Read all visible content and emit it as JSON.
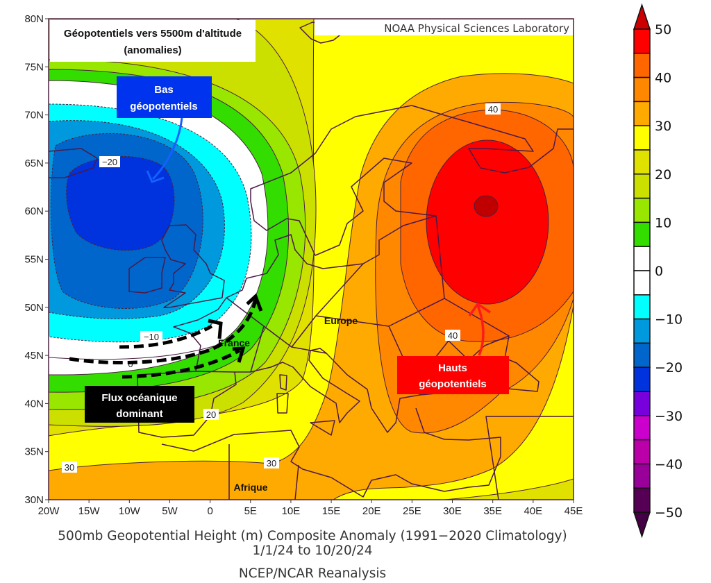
{
  "map": {
    "title_box": {
      "line1": "Géopotentiels vers 5500m d'altitude",
      "line2": "(anomalies)"
    },
    "credit": "NOAA Physical Sciences Laboratory",
    "low_box": {
      "line1": "Bas",
      "line2": "géopotentiels",
      "color": "#0033ee"
    },
    "high_box": {
      "line1": "Hauts",
      "line2": "géopotentiels",
      "color": "#ff0000"
    },
    "flow_box": {
      "line1": "Flux océanique",
      "line2": "dominant",
      "color": "#000000"
    },
    "places": {
      "europe": "Europe",
      "france": "France",
      "afrique": "Afrique"
    },
    "contour_labels": [
      "−20",
      "−10",
      "0",
      "20",
      "30",
      "30",
      "40",
      "40"
    ],
    "lat_labels": [
      "80N",
      "75N",
      "70N",
      "65N",
      "60N",
      "55N",
      "50N",
      "45N",
      "40N",
      "35N",
      "30N"
    ],
    "lon_labels": [
      "20W",
      "15W",
      "10W",
      "5W",
      "0",
      "5E",
      "10E",
      "15E",
      "20E",
      "25E",
      "30E",
      "35E",
      "40E",
      "45E"
    ],
    "lon_range": [
      -20,
      45
    ],
    "lat_range": [
      30,
      80
    ]
  },
  "colorbar": {
    "labels": [
      "50",
      "40",
      "30",
      "20",
      "10",
      "0",
      "−10",
      "−20",
      "−30",
      "−40",
      "−50"
    ],
    "colors": [
      "#ff0000",
      "#ff6600",
      "#ff8800",
      "#ffaa00",
      "#ffff00",
      "#e1e100",
      "#cce000",
      "#99e600",
      "#33dd00",
      "#ffffff",
      "#ffffff",
      "#00ffff",
      "#0099dd",
      "#0066cc",
      "#0033dd",
      "#7700dd",
      "#cc00cc",
      "#bb00aa",
      "#990099",
      "#550055"
    ],
    "over_color": "#cc0000",
    "under_color": "#440044"
  },
  "caption": {
    "line1": "500mb Geopotential Height (m) Composite Anomaly (1991−2020 Climatology)",
    "line2": "1/1/24  to 10/20/24",
    "line3": "NCEP/NCAR Reanalysis"
  }
}
